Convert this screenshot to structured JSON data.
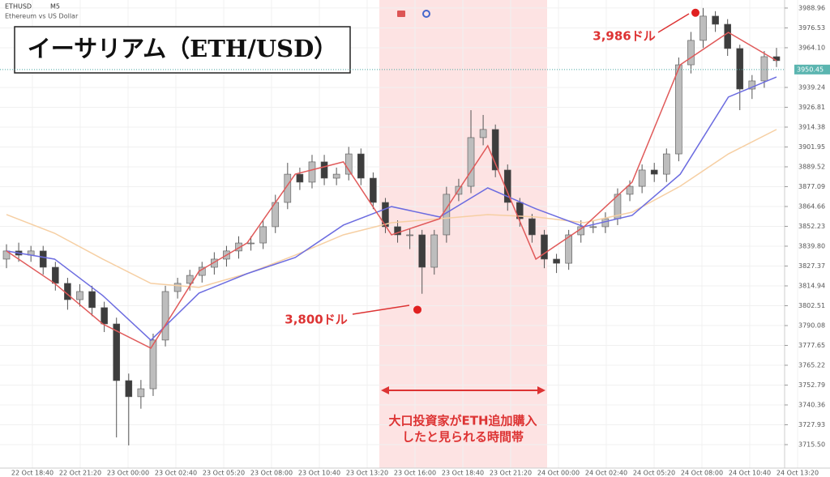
{
  "header": {
    "symbol": "ETHUSD",
    "timeframe": "M5",
    "description": "Ethereum vs US Dollar"
  },
  "chart_data": {
    "type": "candlestick",
    "title": "イーサリアム（ETH/USD）",
    "x_labels": [
      "22 Oct 18:40",
      "22 Oct 21:20",
      "23 Oct 00:00",
      "23 Oct 02:40",
      "23 Oct 05:20",
      "23 Oct 08:00",
      "23 Oct 10:40",
      "23 Oct 13:20",
      "23 Oct 16:00",
      "23 Oct 18:40",
      "23 Oct 21:20",
      "24 Oct 00:00",
      "24 Oct 02:40",
      "24 Oct 05:20",
      "24 Oct 08:00",
      "24 Oct 10:40",
      "24 Oct 13:20"
    ],
    "open": [
      3831.7,
      3836.8,
      3834.2,
      3836.8,
      3826.6,
      3816.5,
      3806.3,
      3811.4,
      3801.3,
      3791.1,
      3755.6,
      3745.5,
      3750.5,
      3781.0,
      3811.4,
      3816.5,
      3821.5,
      3826.6,
      3831.7,
      3836.8,
      3841.8,
      3841.8,
      3852.0,
      3867.2,
      3884.9,
      3879.9,
      3892.6,
      3882.4,
      3884.9,
      3897.6,
      3882.4,
      3867.2,
      3852.0,
      3846.9,
      3846.9,
      3826.6,
      3846.9,
      3872.3,
      3877.3,
      3907.8,
      3912.9,
      3887.5,
      3867.2,
      3857.0,
      3846.9,
      3831.7,
      3829.1,
      3846.9,
      3852.0,
      3852.0,
      3857.0,
      3872.3,
      3877.3,
      3887.5,
      3884.9,
      3897.6,
      3953.4,
      3968.7,
      3983.9,
      3978.8,
      3963.6,
      3938.2,
      3943.3,
      3958.5
    ],
    "high": [
      3841,
      3842,
      3840,
      3840,
      3830,
      3820,
      3816,
      3815,
      3805,
      3795,
      3760,
      3756,
      3785,
      3815,
      3820,
      3825,
      3830,
      3836,
      3840,
      3846,
      3846,
      3856,
      3872,
      3892,
      3889,
      3897,
      3897,
      3889,
      3902,
      3901,
      3886,
      3870,
      3856,
      3851,
      3850,
      3850,
      3877,
      3882,
      3925,
      3922,
      3916,
      3891,
      3870,
      3860,
      3850,
      3835,
      3850,
      3856,
      3856,
      3861,
      3876,
      3881,
      3891,
      3892,
      3901,
      3958,
      3974,
      3989,
      3987,
      3982,
      3966,
      3947,
      3962,
      3964
    ],
    "low": [
      3826,
      3830,
      3830,
      3822,
      3812,
      3800,
      3802,
      3796,
      3786,
      3720,
      3715,
      3738,
      3746,
      3777,
      3807,
      3812,
      3817,
      3822,
      3827,
      3832,
      3837,
      3838,
      3848,
      3863,
      3875,
      3876,
      3878,
      3878,
      3881,
      3878,
      3863,
      3848,
      3842,
      3838,
      3810,
      3822,
      3842,
      3868,
      3873,
      3903,
      3883,
      3862,
      3852,
      3842,
      3826,
      3823,
      3825,
      3842,
      3848,
      3848,
      3853,
      3868,
      3873,
      3880,
      3880,
      3893,
      3948,
      3964,
      3974,
      3959,
      3925,
      3932,
      3939,
      3952
    ],
    "close": [
      3836.8,
      3834.2,
      3836.8,
      3826.6,
      3816.5,
      3806.3,
      3811.4,
      3801.3,
      3791.1,
      3755.6,
      3745.5,
      3750.5,
      3781.0,
      3811.4,
      3816.5,
      3821.5,
      3826.6,
      3831.7,
      3836.8,
      3841.8,
      3841.8,
      3852.0,
      3867.2,
      3884.9,
      3879.9,
      3892.6,
      3882.4,
      3884.9,
      3897.6,
      3882.4,
      3867.2,
      3852.0,
      3846.9,
      3846.9,
      3826.6,
      3846.9,
      3872.3,
      3877.3,
      3907.8,
      3912.9,
      3887.5,
      3867.2,
      3857.0,
      3846.9,
      3831.7,
      3829.1,
      3846.9,
      3852.0,
      3852.0,
      3857.0,
      3872.3,
      3877.3,
      3887.5,
      3884.9,
      3897.6,
      3953.4,
      3968.7,
      3983.9,
      3978.8,
      3963.6,
      3938.2,
      3943.3,
      3958.5,
      3956.0
    ],
    "up_color": "#bdbdbd",
    "down_color": "#3d3d3d",
    "series": [
      {
        "color": "#f6cfa3",
        "values": [
          3859.6,
          3847.9,
          3831.7,
          3816.5,
          3814.0,
          3822.6,
          3834.2,
          3846.9,
          3854.5,
          3857.0,
          3859.6,
          3858.1,
          3854.5,
          3861.1,
          3877.4,
          3897.6,
          3912.9
        ]
      },
      {
        "color": "#6c6ce0",
        "values": [
          3836.8,
          3831.7,
          3808.9,
          3780.9,
          3810.4,
          3822.6,
          3832.7,
          3853.0,
          3864.6,
          3858.1,
          3876.3,
          3863.2,
          3852.0,
          3859.1,
          3884.9,
          3933.2,
          3945.8
        ]
      },
      {
        "color": "#e05a5a",
        "values": [
          3836.8,
          3816.5,
          3791.1,
          3775.9,
          3824.1,
          3841.8,
          3884.9,
          3892.6,
          3846.9,
          3857.0,
          3902.7,
          3831.7,
          3852.0,
          3879.9,
          3953.4,
          3973.7,
          3956.0
        ]
      }
    ],
    "ylim": [
      3700.8,
      3994.0
    ],
    "yticks": [
      3988.96,
      3976.53,
      {
        "value": 3964.1,
        "label": "3964.10"
      },
      3939.24,
      3926.81,
      3914.38,
      3901.95,
      3889.52,
      3877.09,
      3864.66,
      3852.23,
      {
        "value": 3839.8,
        "label": "3839.80"
      },
      3827.37,
      3814.94,
      3802.51,
      3790.08,
      3777.65,
      3765.22,
      3752.79,
      3740.36,
      3727.93,
      {
        "value": 3715.5,
        "label": "3715.50"
      }
    ],
    "grid": true,
    "last_price": 3950.45,
    "annotations": [
      {
        "label": "3,800ドル",
        "value": 3800
      },
      {
        "label": "3,986ドル",
        "value": 3986
      }
    ],
    "highlight_label": [
      "大口投資家がETH追加購入",
      "したと見られる時間帯"
    ]
  }
}
